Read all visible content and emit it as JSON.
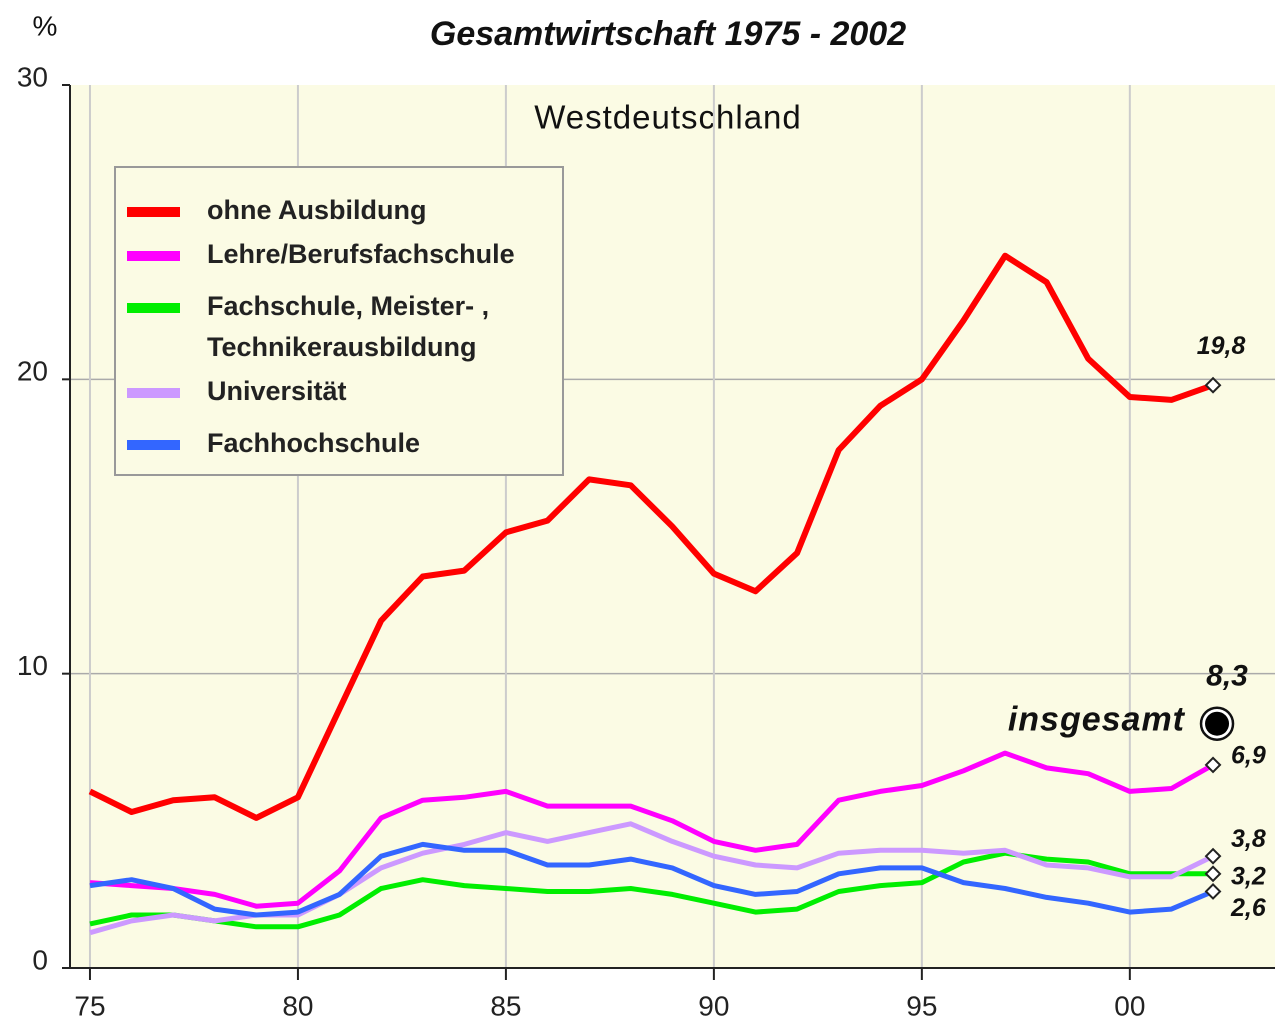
{
  "chart_data": {
    "type": "line",
    "title": "Gesamtwirtschaft  1975 - 2002",
    "y_label": "%",
    "annotation": "Westdeutschland",
    "x": [
      1975,
      1976,
      1977,
      1978,
      1979,
      1980,
      1981,
      1982,
      1983,
      1984,
      1985,
      1986,
      1987,
      1988,
      1989,
      1990,
      1991,
      1992,
      1993,
      1994,
      1995,
      1996,
      1997,
      1998,
      1999,
      2000,
      2001,
      2002
    ],
    "series": [
      {
        "name": "ohne Ausbildung",
        "color": "#ff0000",
        "values": [
          6.0,
          5.3,
          5.7,
          5.8,
          5.1,
          5.8,
          8.8,
          11.8,
          13.3,
          13.5,
          14.8,
          15.2,
          16.6,
          16.4,
          15.0,
          13.4,
          12.8,
          14.1,
          17.6,
          19.1,
          20.0,
          22.0,
          24.2,
          23.3,
          20.7,
          19.4,
          19.3,
          19.8
        ],
        "value_labels": [
          null,
          null,
          null,
          null,
          null,
          null,
          null,
          null,
          null,
          null,
          null,
          null,
          null,
          null,
          null,
          null,
          null,
          null,
          null,
          null,
          null,
          null,
          null,
          null,
          null,
          null,
          null,
          "19,8"
        ]
      },
      {
        "name": "Lehre/Berufsfachschule",
        "color": "#ff00ff",
        "values": [
          2.9,
          2.8,
          2.7,
          2.5,
          2.1,
          2.2,
          3.3,
          5.1,
          5.7,
          5.8,
          6.0,
          5.5,
          5.5,
          5.5,
          5.0,
          4.3,
          4.0,
          4.2,
          5.7,
          6.0,
          6.2,
          6.7,
          7.3,
          6.8,
          6.6,
          6.0,
          6.1,
          6.9
        ],
        "value_labels": [
          null,
          null,
          null,
          null,
          null,
          null,
          null,
          null,
          null,
          null,
          null,
          null,
          null,
          null,
          null,
          null,
          null,
          null,
          null,
          null,
          null,
          null,
          null,
          null,
          null,
          null,
          null,
          "6,9"
        ]
      },
      {
        "name": "Fachschule, Meister- , Technikerausbildung",
        "color": "#00ee00",
        "values": [
          1.5,
          1.8,
          1.8,
          1.6,
          1.4,
          1.4,
          1.8,
          2.7,
          3.0,
          2.8,
          2.7,
          2.6,
          2.6,
          2.7,
          2.5,
          2.2,
          1.9,
          2.0,
          2.6,
          2.8,
          2.9,
          3.6,
          3.9,
          3.7,
          3.6,
          3.2,
          3.2,
          3.2
        ],
        "value_labels": [
          null,
          null,
          null,
          null,
          null,
          null,
          null,
          null,
          null,
          null,
          null,
          null,
          null,
          null,
          null,
          null,
          null,
          null,
          null,
          null,
          null,
          null,
          null,
          null,
          null,
          null,
          null,
          "3,2"
        ]
      },
      {
        "name": "Universität",
        "color": "#cc99ff",
        "values": [
          1.2,
          1.6,
          1.8,
          1.6,
          1.8,
          1.8,
          2.5,
          3.4,
          3.9,
          4.2,
          4.6,
          4.3,
          4.6,
          4.9,
          4.3,
          3.8,
          3.5,
          3.4,
          3.9,
          4.0,
          4.0,
          3.9,
          4.0,
          3.5,
          3.4,
          3.1,
          3.1,
          3.8
        ],
        "value_labels": [
          null,
          null,
          null,
          null,
          null,
          null,
          null,
          null,
          null,
          null,
          null,
          null,
          null,
          null,
          null,
          null,
          null,
          null,
          null,
          null,
          null,
          null,
          null,
          null,
          null,
          null,
          null,
          "3,8"
        ]
      },
      {
        "name": "Fachhochschule",
        "color": "#3366ff",
        "values": [
          2.8,
          3.0,
          2.7,
          2.0,
          1.8,
          1.9,
          2.5,
          3.8,
          4.2,
          4.0,
          4.0,
          3.5,
          3.5,
          3.7,
          3.4,
          2.8,
          2.5,
          2.6,
          3.2,
          3.4,
          3.4,
          2.9,
          2.7,
          2.4,
          2.2,
          1.9,
          2.0,
          2.6
        ],
        "value_labels": [
          null,
          null,
          null,
          null,
          null,
          null,
          null,
          null,
          null,
          null,
          null,
          null,
          null,
          null,
          null,
          null,
          null,
          null,
          null,
          null,
          null,
          null,
          null,
          null,
          null,
          null,
          null,
          "2,6"
        ]
      }
    ],
    "total": {
      "label": "insgesamt",
      "x": 2002,
      "value": 8.3,
      "value_label": "8,3"
    },
    "xlim": [
      1974.52,
      2003.49
    ],
    "xticks": [
      {
        "value": 1975,
        "label": "75"
      },
      {
        "value": 1980,
        "label": "80"
      },
      {
        "value": 1985,
        "label": "85"
      },
      {
        "value": 1990,
        "label": "90"
      },
      {
        "value": 1995,
        "label": "95"
      },
      {
        "value": 2000,
        "label": "00"
      }
    ],
    "ylim": [
      0,
      30
    ],
    "yticks": [
      0,
      10,
      20,
      30
    ],
    "grid": true,
    "legend": "upper left"
  }
}
